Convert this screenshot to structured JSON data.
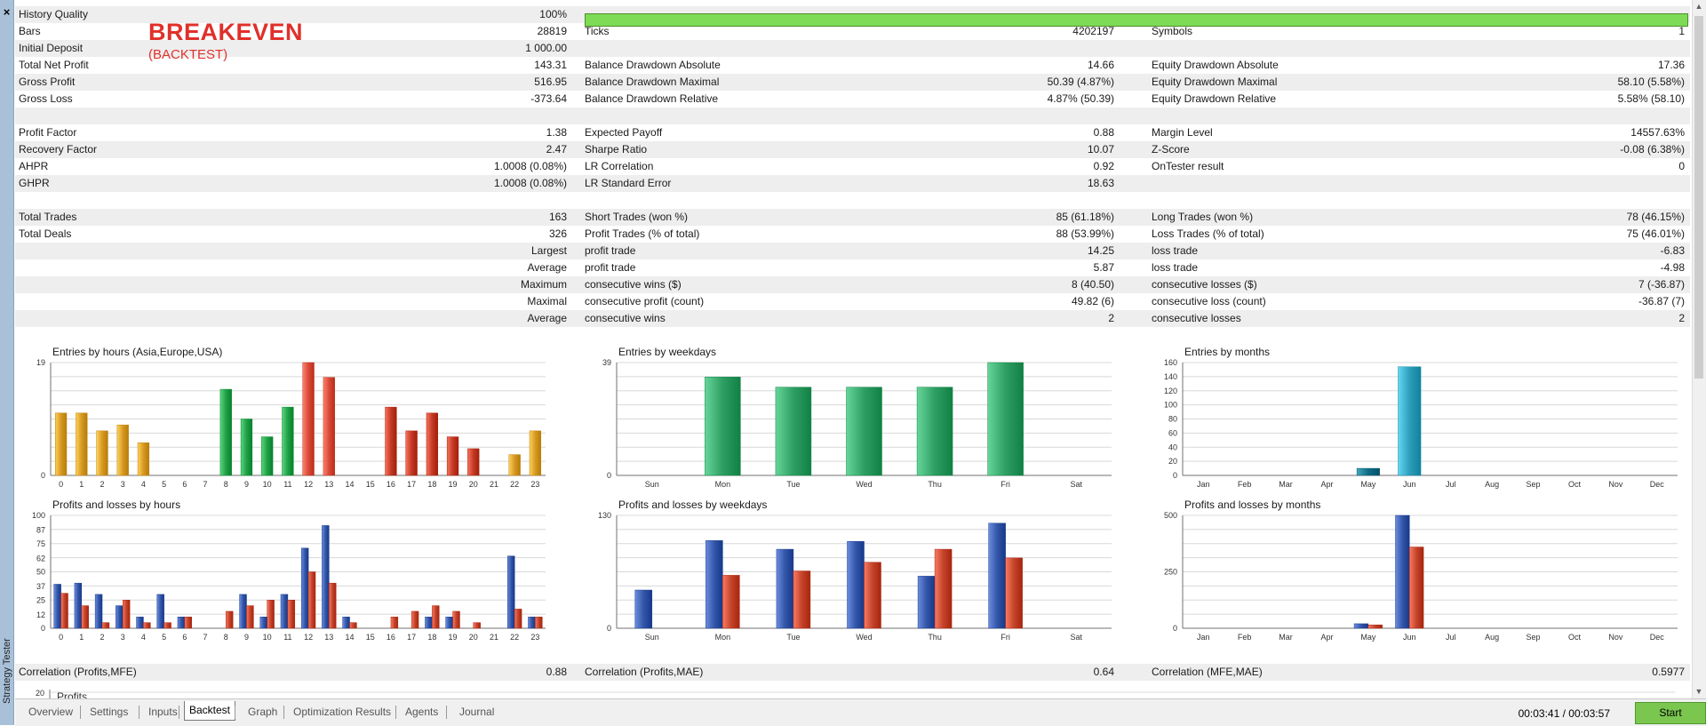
{
  "window": {
    "side_label": "Strategy Tester",
    "close_icon": "×"
  },
  "overlay": {
    "title": "BREAKEVEN",
    "subtitle": "(BACKTEST)"
  },
  "stats": {
    "rows": [
      {
        "c1": {
          "label": "History Quality",
          "value": "100%"
        },
        "bar": {
          "fill_percent": 100,
          "color": "#7ddb55"
        }
      },
      {
        "c1": {
          "label": "Bars",
          "value": "28819"
        },
        "c2": {
          "label": "Ticks",
          "value": "4202197"
        },
        "c3": {
          "label": "Symbols",
          "value": "1"
        }
      },
      {
        "c1": {
          "label": "Initial Deposit",
          "value": "1 000.00"
        }
      },
      {
        "c1": {
          "label": "Total Net Profit",
          "value": "143.31"
        },
        "c2": {
          "label": "Balance Drawdown Absolute",
          "value": "14.66"
        },
        "c3": {
          "label": "Equity Drawdown Absolute",
          "value": "17.36"
        }
      },
      {
        "c1": {
          "label": "Gross Profit",
          "value": "516.95"
        },
        "c2": {
          "label": "Balance Drawdown Maximal",
          "value": "50.39 (4.87%)"
        },
        "c3": {
          "label": "Equity Drawdown Maximal",
          "value": "58.10 (5.58%)"
        }
      },
      {
        "c1": {
          "label": "Gross Loss",
          "value": "-373.64"
        },
        "c2": {
          "label": "Balance Drawdown Relative",
          "value": "4.87% (50.39)"
        },
        "c3": {
          "label": "Equity Drawdown Relative",
          "value": "5.58% (58.10)"
        }
      },
      {},
      {
        "c1": {
          "label": "Profit Factor",
          "value": "1.38"
        },
        "c2": {
          "label": "Expected Payoff",
          "value": "0.88"
        },
        "c3": {
          "label": "Margin Level",
          "value": "14557.63%"
        }
      },
      {
        "c1": {
          "label": "Recovery Factor",
          "value": "2.47"
        },
        "c2": {
          "label": "Sharpe Ratio",
          "value": "10.07"
        },
        "c3": {
          "label": "Z-Score",
          "value": "-0.08 (6.38%)"
        }
      },
      {
        "c1": {
          "label": "AHPR",
          "value": "1.0008 (0.08%)"
        },
        "c2": {
          "label": "LR Correlation",
          "value": "0.92"
        },
        "c3": {
          "label": "OnTester result",
          "value": "0"
        }
      },
      {
        "c1": {
          "label": "GHPR",
          "value": "1.0008 (0.08%)"
        },
        "c2": {
          "label": "LR Standard Error",
          "value": "18.63"
        }
      },
      {},
      {
        "c1": {
          "label": "Total Trades",
          "value": "163"
        },
        "c2": {
          "label": "Short Trades (won %)",
          "value": "85 (61.18%)"
        },
        "c3": {
          "label": "Long Trades (won %)",
          "value": "78 (46.15%)"
        }
      },
      {
        "c1": {
          "label": "Total Deals",
          "value": "326"
        },
        "c2": {
          "label": "Profit Trades (% of total)",
          "value": "88 (53.99%)"
        },
        "c3": {
          "label": "Loss Trades (% of total)",
          "value": "75 (46.01%)"
        }
      },
      {
        "c1": {
          "value": "Largest"
        },
        "c2": {
          "label": "profit trade",
          "value": "14.25"
        },
        "c3": {
          "label": "loss trade",
          "value": "-6.83"
        }
      },
      {
        "c1": {
          "value": "Average"
        },
        "c2": {
          "label": "profit trade",
          "value": "5.87"
        },
        "c3": {
          "label": "loss trade",
          "value": "-4.98"
        }
      },
      {
        "c1": {
          "value": "Maximum"
        },
        "c2": {
          "label": "consecutive wins ($)",
          "value": "8 (40.50)"
        },
        "c3": {
          "label": "consecutive losses ($)",
          "value": "7 (-36.87)"
        }
      },
      {
        "c1": {
          "value": "Maximal"
        },
        "c2": {
          "label": "consecutive profit (count)",
          "value": "49.82 (6)"
        },
        "c3": {
          "label": "consecutive loss (count)",
          "value": "-36.87 (7)"
        }
      },
      {
        "c1": {
          "value": "Average"
        },
        "c2": {
          "label": "consecutive wins",
          "value": "2"
        },
        "c3": {
          "label": "consecutive losses",
          "value": "2"
        }
      }
    ]
  },
  "correlation": {
    "c1": {
      "label": "Correlation (Profits,MFE)",
      "value": "0.88"
    },
    "c2": {
      "label": "Correlation (Profits,MAE)",
      "value": "0.64"
    },
    "c3": {
      "label": "Correlation (MFE,MAE)",
      "value": "0.5977"
    }
  },
  "partial_chart": {
    "y_tick": "20",
    "fragment": "Profits"
  },
  "chart_data": [
    {
      "id": "entries-hours",
      "type": "bar",
      "title": "Entries by hours (Asia,Europe,USA)",
      "categories": [
        "0",
        "1",
        "2",
        "3",
        "4",
        "5",
        "6",
        "7",
        "8",
        "9",
        "10",
        "11",
        "12",
        "13",
        "14",
        "15",
        "16",
        "17",
        "18",
        "19",
        "20",
        "21",
        "22",
        "23"
      ],
      "values": [
        10.5,
        10.5,
        7.5,
        8.5,
        5.5,
        0,
        0,
        0,
        14.5,
        9.5,
        6.5,
        11.5,
        19,
        16.5,
        0,
        0,
        11.5,
        7.5,
        10.5,
        6.5,
        4.5,
        0,
        3.5,
        7.5
      ],
      "ylim": [
        0,
        19
      ],
      "yticks": [
        0,
        19
      ],
      "colors": [
        "#d69a24",
        "#d69a24",
        "#d69a24",
        "#d69a24",
        "#d69a24",
        "#d69a24",
        "#d69a24",
        "#d69a24",
        "#22a048",
        "#22a048",
        "#22a048",
        "#22a048",
        "#d94a38",
        "#d94a38",
        "#d94a38",
        "#d94a38",
        "#c23b26",
        "#c23b26",
        "#c23b26",
        "#c23b26",
        "#c23b26",
        "#c23b26",
        "#d69a24",
        "#d69a24"
      ]
    },
    {
      "id": "entries-weekdays",
      "type": "bar",
      "title": "Entries by weekdays",
      "categories": [
        "Sun",
        "Mon",
        "Tue",
        "Wed",
        "Thu",
        "Fri",
        "Sat"
      ],
      "values": [
        0,
        34,
        30.5,
        30.5,
        30.5,
        39,
        0
      ],
      "ylim": [
        0,
        39
      ],
      "yticks": [
        0,
        39
      ],
      "colors": [
        "#2e9e62",
        "#2e9e62",
        "#2e9e62",
        "#2e9e62",
        "#2e9e62",
        "#2e9e62",
        "#2e9e62"
      ]
    },
    {
      "id": "entries-months",
      "type": "bar",
      "title": "Entries by months",
      "categories": [
        "Jan",
        "Feb",
        "Mar",
        "Apr",
        "May",
        "Jun",
        "Jul",
        "Aug",
        "Sep",
        "Oct",
        "Nov",
        "Dec"
      ],
      "values": [
        0,
        0,
        0,
        0,
        10,
        154,
        0,
        0,
        0,
        0,
        0,
        0
      ],
      "ylim": [
        0,
        160
      ],
      "yticks": [
        0,
        20,
        40,
        60,
        80,
        100,
        120,
        140,
        160
      ],
      "colors": [
        "#1f8aa5",
        "#1f8aa5",
        "#1f8aa5",
        "#1f8aa5",
        "#0f6e86",
        "#2d9fbb",
        "#1f8aa5",
        "#1f8aa5",
        "#1f8aa5",
        "#1f8aa5",
        "#1f8aa5",
        "#1f8aa5"
      ]
    },
    {
      "id": "pl-hours",
      "type": "bar",
      "title": "Profits and losses by hours",
      "categories": [
        "0",
        "1",
        "2",
        "3",
        "4",
        "5",
        "6",
        "7",
        "8",
        "9",
        "10",
        "11",
        "12",
        "13",
        "14",
        "15",
        "16",
        "17",
        "18",
        "19",
        "20",
        "21",
        "22",
        "23"
      ],
      "series": [
        {
          "name": "profits",
          "color": "#3456a8",
          "values": [
            39,
            40,
            30,
            20,
            10,
            30,
            10,
            0,
            0,
            30,
            10,
            30,
            71,
            91,
            10,
            0,
            0,
            0,
            10,
            10,
            0,
            0,
            64,
            10
          ]
        },
        {
          "name": "losses",
          "color": "#c4432b",
          "values": [
            31,
            20,
            5,
            25,
            5,
            5,
            10,
            0,
            15,
            20,
            25,
            25,
            50,
            40,
            5,
            0,
            10,
            15,
            20,
            15,
            5,
            0,
            17,
            10
          ]
        }
      ],
      "ylim": [
        0,
        100
      ],
      "yticks": [
        0,
        12,
        25,
        37,
        50,
        62,
        75,
        87,
        100
      ]
    },
    {
      "id": "pl-weekdays",
      "type": "bar",
      "title": "Profits and losses by weekdays",
      "categories": [
        "Sun",
        "Mon",
        "Tue",
        "Wed",
        "Thu",
        "Fri",
        "Sat"
      ],
      "series": [
        {
          "name": "profits",
          "color": "#3456a8",
          "values": [
            44,
            101,
            91,
            100,
            60,
            121,
            0
          ]
        },
        {
          "name": "losses",
          "color": "#c4432b",
          "values": [
            0,
            61,
            66,
            76,
            91,
            81,
            0
          ]
        }
      ],
      "ylim": [
        0,
        130
      ],
      "yticks": [
        0,
        130
      ]
    },
    {
      "id": "pl-months",
      "type": "bar",
      "title": "Profits and losses by months",
      "categories": [
        "Jan",
        "Feb",
        "Mar",
        "Apr",
        "May",
        "Jun",
        "Jul",
        "Aug",
        "Sep",
        "Oct",
        "Nov",
        "Dec"
      ],
      "series": [
        {
          "name": "profits",
          "color": "#3456a8",
          "values": [
            0,
            0,
            0,
            0,
            20,
            500,
            0,
            0,
            0,
            0,
            0,
            0
          ]
        },
        {
          "name": "losses",
          "color": "#c4432b",
          "values": [
            0,
            0,
            0,
            0,
            15,
            360,
            0,
            0,
            0,
            0,
            0,
            0
          ]
        }
      ],
      "ylim": [
        0,
        500
      ],
      "yticks": [
        0,
        250,
        500
      ]
    }
  ],
  "tabs": [
    {
      "label": "Overview",
      "active": false
    },
    {
      "label": "Settings",
      "active": false
    },
    {
      "label": "Inputs",
      "active": false
    },
    {
      "label": "Backtest",
      "active": true
    },
    {
      "label": "Graph",
      "active": false
    },
    {
      "label": "Optimization Results",
      "active": false
    },
    {
      "label": "Agents",
      "active": false
    },
    {
      "label": "Journal",
      "active": false
    }
  ],
  "status": {
    "timer": "00:03:41 / 00:03:57",
    "start_label": "Start"
  }
}
